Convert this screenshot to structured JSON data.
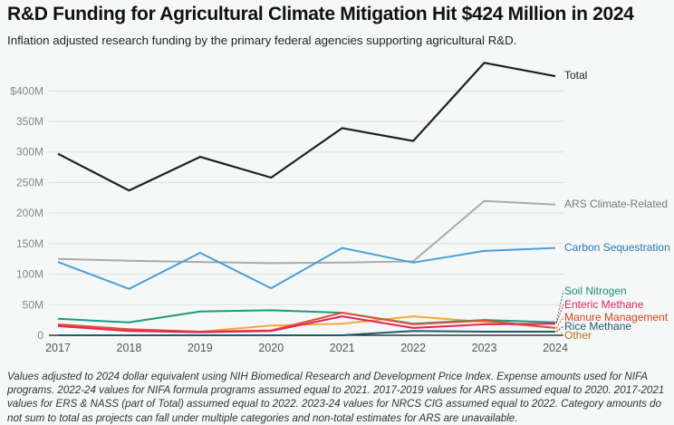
{
  "header": {
    "title": "R&D Funding for Agricultural Climate Mitigation Hit $424 Million in 2024",
    "subtitle": "Inflation adjusted research funding by the primary federal agencies supporting agricultural R&D."
  },
  "footer": {
    "notes": "Values adjusted to 2024 dollar equivalent using NIH Biomedical Research and Development Price Index. Expense amounts used for NIFA programs. 2022-24 values for NIFA formula programs assumed equal to 2021. 2017-2019 values for ARS assumed equal to 2020. 2017-2021 values for ERS & NASS (part of Total) assumed equal to 2022. 2023-24 values for NRCS CIG assumed equal to 2022. Category amounts do not sum to total as projects can fall under multiple categories and non-total estimates for ARS are unavailable."
  },
  "chart_data": {
    "type": "line",
    "title": "R&D Funding for Agricultural Climate Mitigation Hit $424 Million in 2024",
    "subtitle": "Inflation adjusted research funding by the primary federal agencies supporting agricultural R&D.",
    "xlabel": "",
    "ylabel": "",
    "x": [
      "2017",
      "2018",
      "2019",
      "2020",
      "2021",
      "2022",
      "2023",
      "2024"
    ],
    "ylim": [
      0,
      450
    ],
    "yticks": [
      0,
      50,
      100,
      150,
      200,
      250,
      300,
      350,
      400
    ],
    "ytick_labels": [
      "0",
      "50M",
      "100M",
      "150M",
      "200M",
      "250M",
      "300M",
      "350M",
      "$400M"
    ],
    "grid": true,
    "legend": "direct-labels-right",
    "series": [
      {
        "name": "Total",
        "color": "#1f1f1f",
        "label_color": "#222222",
        "values": [
          297,
          237,
          292,
          258,
          339,
          318,
          446,
          424
        ]
      },
      {
        "name": "ARS Climate-Related",
        "color": "#aaaaaa",
        "label_color": "#777777",
        "values": [
          125,
          122,
          120,
          118,
          119,
          121,
          220,
          214
        ]
      },
      {
        "name": "Carbon Sequestration",
        "color": "#4b9fd5",
        "label_color": "#2a77b0",
        "values": [
          120,
          76,
          135,
          77,
          143,
          119,
          138,
          143
        ]
      },
      {
        "name": "Soil Nitrogen",
        "color": "#1a9a80",
        "label_color": "#1a8a70",
        "values": [
          27,
          21,
          39,
          41,
          37,
          19,
          25,
          21
        ]
      },
      {
        "name": "Enteric Methane",
        "color": "#e0245e",
        "label_color": "#e0245e",
        "values": [
          15,
          7,
          5,
          7,
          31,
          12,
          18,
          19
        ]
      },
      {
        "name": "Manure Management",
        "color": "#e5502e",
        "label_color": "#d8401f",
        "values": [
          18,
          10,
          6,
          8,
          37,
          18,
          24,
          12
        ]
      },
      {
        "name": "Rice Methane",
        "color": "#1a5d6e",
        "label_color": "#1a5d6e",
        "values": [
          0,
          0,
          0,
          0,
          0,
          7,
          6,
          6
        ]
      },
      {
        "name": "Other",
        "color": "#f5a742",
        "label_color": "#b8731a",
        "values": [
          16,
          9,
          6,
          16,
          19,
          31,
          22,
          12
        ]
      }
    ]
  }
}
